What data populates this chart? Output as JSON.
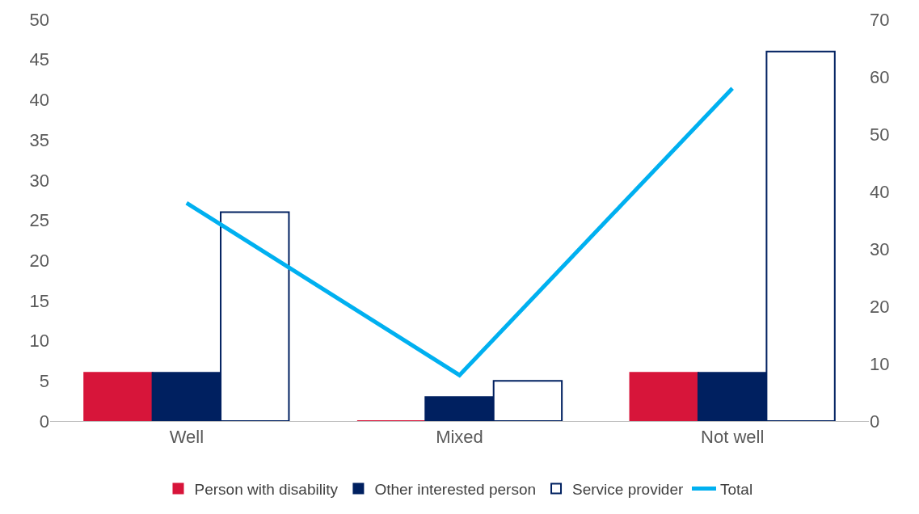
{
  "chart_data": {
    "type": "bar",
    "categories": [
      "Well",
      "Mixed",
      "Not well"
    ],
    "series": [
      {
        "name": "Person with disability",
        "color": "#d7153a",
        "values": [
          6,
          0,
          6
        ]
      },
      {
        "name": "Other interested person",
        "color": "#002060",
        "values": [
          6,
          3,
          6
        ]
      },
      {
        "name": "Service provider",
        "color": "#ffffff",
        "values": [
          26,
          5,
          46
        ]
      },
      {
        "name": "Total",
        "type": "line",
        "axis": "y2",
        "color": "#00b0f0",
        "values": [
          38,
          8,
          58
        ]
      }
    ],
    "ylim": [
      0,
      50
    ],
    "yticks": [
      0,
      5,
      10,
      15,
      20,
      25,
      30,
      35,
      40,
      45,
      50
    ],
    "y2lim": [
      0,
      70
    ],
    "y2ticks": [
      0,
      10,
      20,
      30,
      40,
      50,
      60,
      70
    ],
    "legend": "bottom",
    "marker": "none"
  }
}
